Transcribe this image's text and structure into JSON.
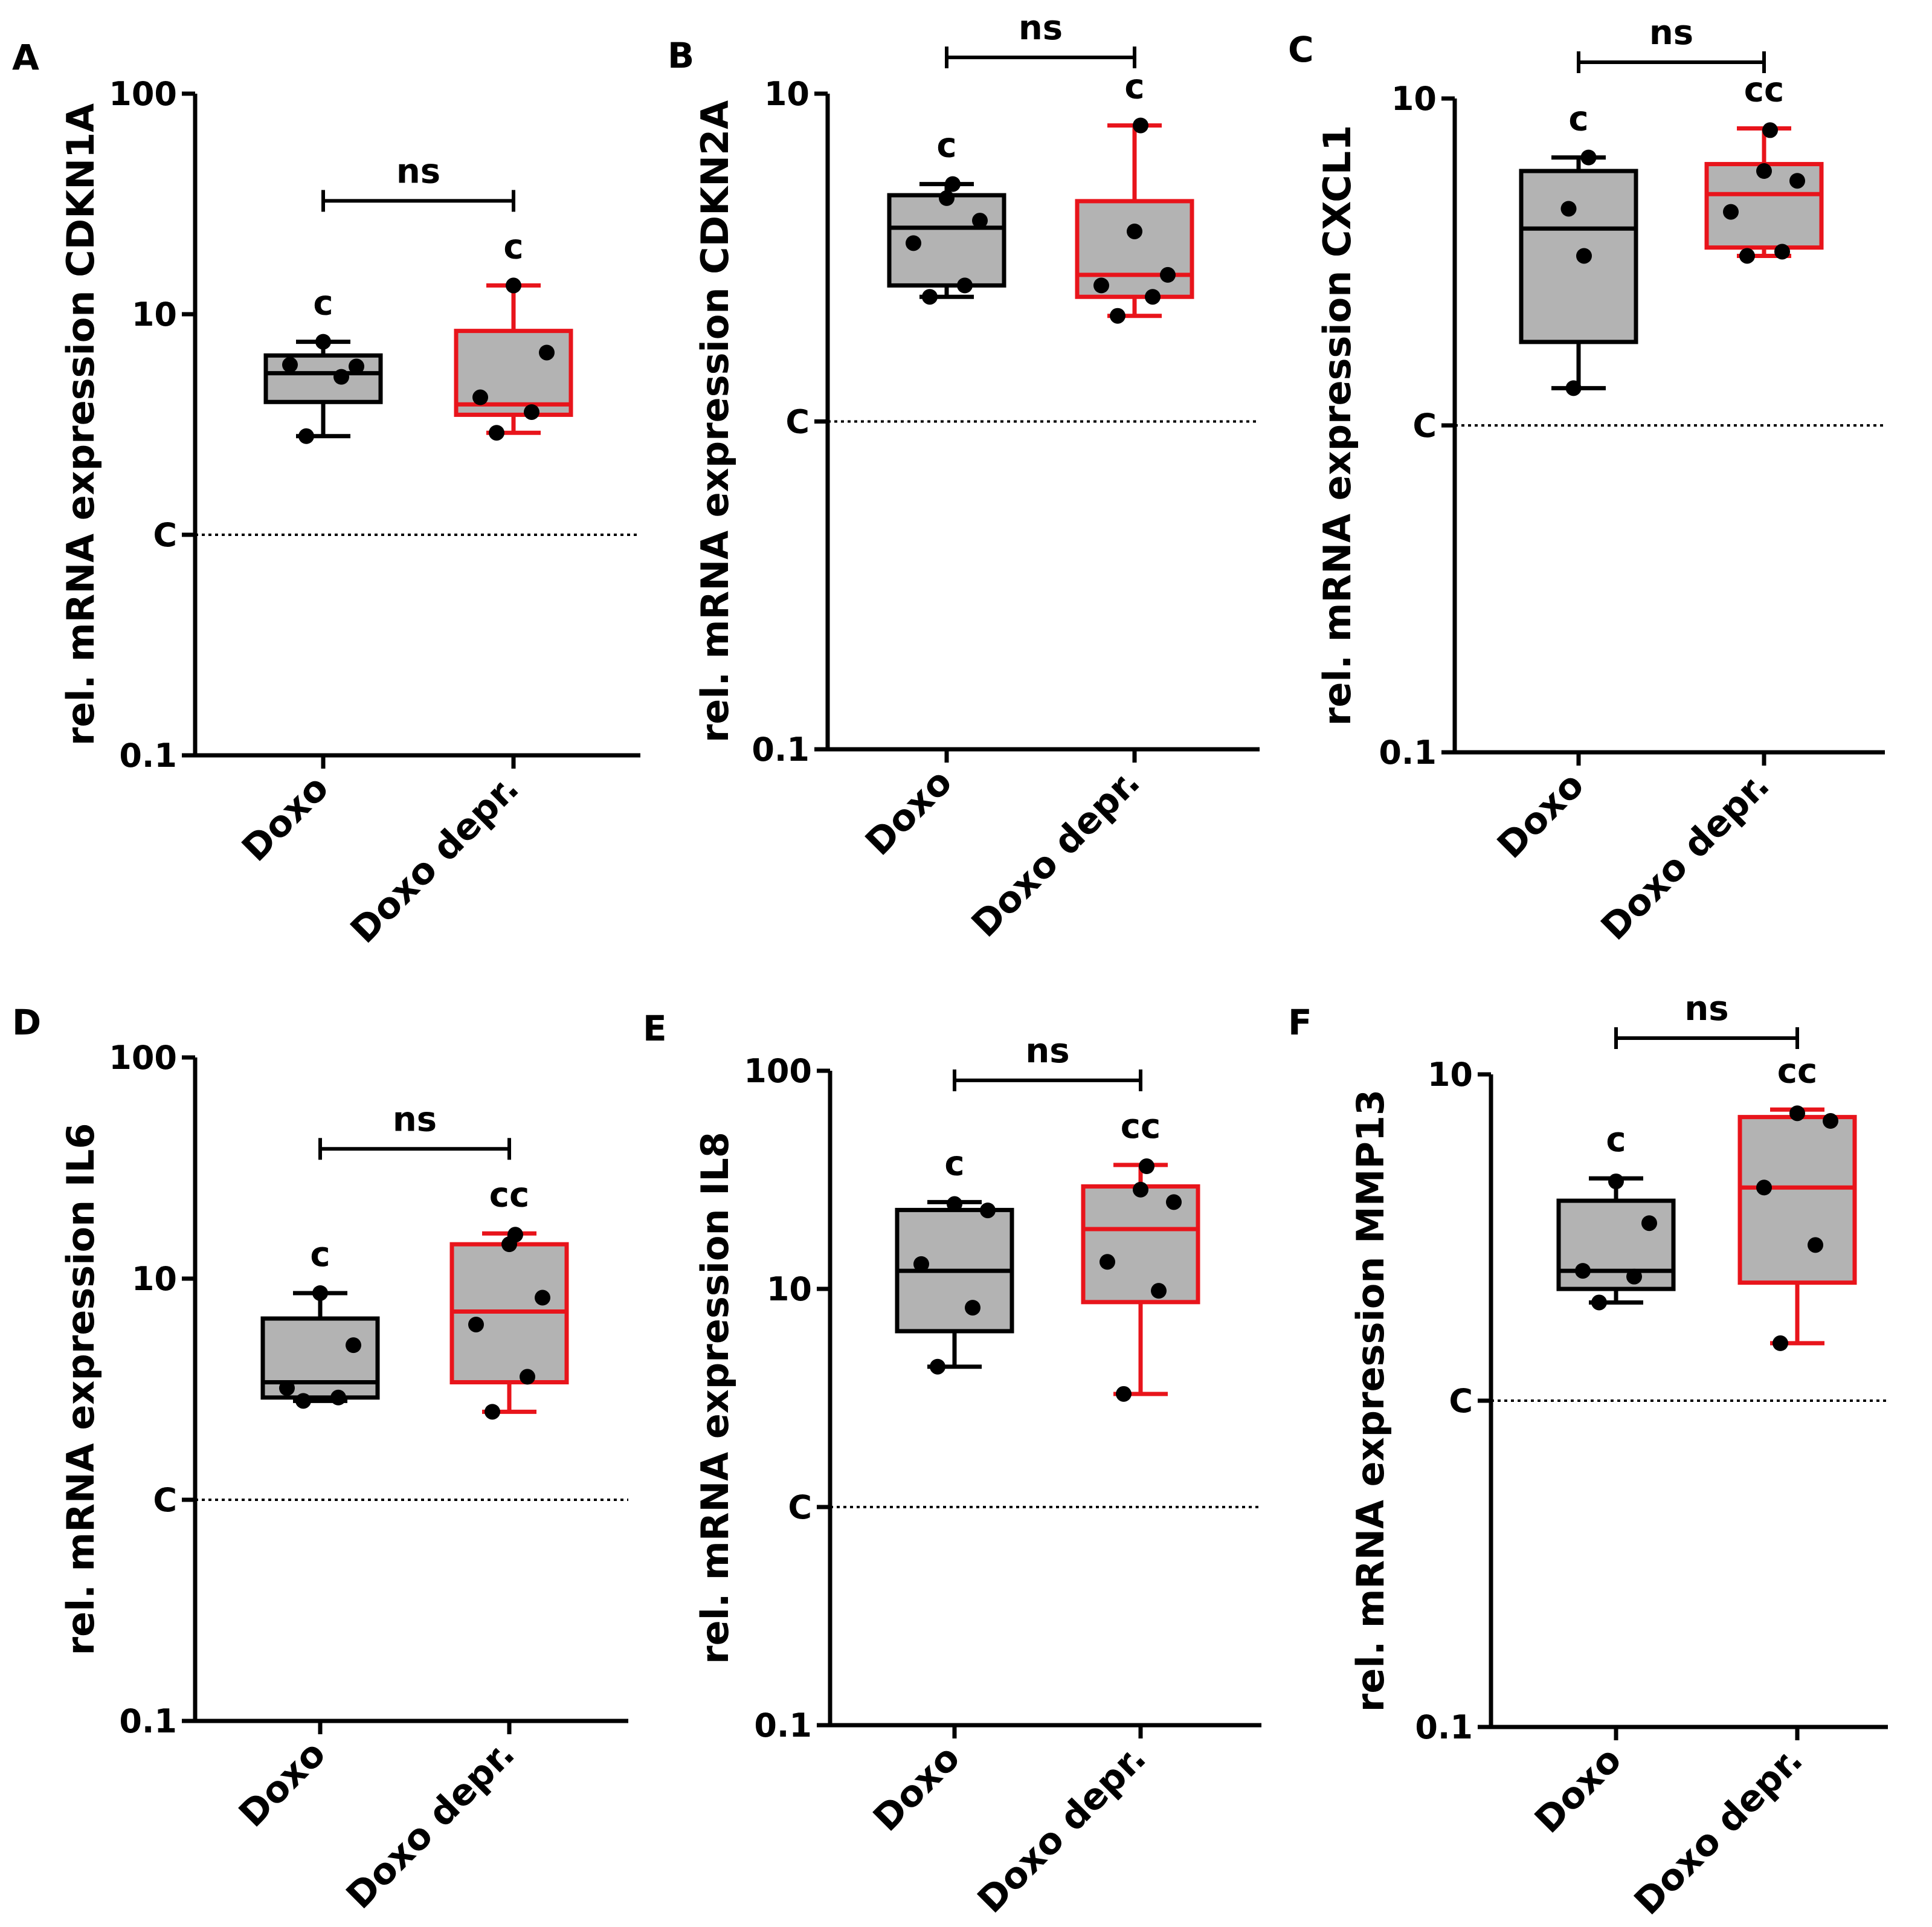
{
  "colors": {
    "doxo": "#000000",
    "doxo_depr": "#e8141b",
    "box_fill": "#b3b3b3"
  },
  "chart_data": [
    {
      "type": "box",
      "panel": "A",
      "ylabel": "rel. mRNA expression CDKN1A",
      "yscale": "log",
      "ylim": [
        0.1,
        100
      ],
      "yticks": [
        {
          "value": 0.1,
          "label": "0.1"
        },
        {
          "value": 1,
          "label": "C"
        },
        {
          "value": 10,
          "label": "10"
        },
        {
          "value": 100,
          "label": "100"
        }
      ],
      "control_line": 1,
      "categories": [
        "Doxo",
        "Doxo depr."
      ],
      "groups": [
        {
          "name": "Doxo",
          "color": "#000000",
          "whisker_low": 2.8,
          "q1": 4.0,
          "median": 5.4,
          "q3": 6.5,
          "whisker_high": 7.5,
          "points": [
            2.8,
            5.2,
            5.9,
            5.8,
            7.5
          ],
          "sig": "c"
        },
        {
          "name": "Doxo depr.",
          "color": "#e8141b",
          "whisker_low": 2.9,
          "q1": 3.5,
          "median": 3.9,
          "q3": 8.4,
          "whisker_high": 13.5,
          "points": [
            2.9,
            3.6,
            4.2,
            6.7,
            13.5
          ],
          "sig": "c"
        }
      ],
      "comparison": "ns"
    },
    {
      "type": "box",
      "panel": "B",
      "ylabel": "rel. mRNA expression CDKN2A",
      "yscale": "log",
      "ylim": [
        0.1,
        10
      ],
      "yticks": [
        {
          "value": 0.1,
          "label": "0.1"
        },
        {
          "value": 1,
          "label": "C"
        },
        {
          "value": 10,
          "label": "10"
        }
      ],
      "control_line": 1,
      "categories": [
        "Doxo",
        "Doxo depr."
      ],
      "groups": [
        {
          "name": "Doxo",
          "color": "#000000",
          "whisker_low": 2.4,
          "q1": 2.6,
          "median": 3.9,
          "q3": 4.9,
          "whisker_high": 5.3,
          "points": [
            2.4,
            2.6,
            3.5,
            4.1,
            4.8,
            5.3
          ],
          "sig": "c"
        },
        {
          "name": "Doxo depr.",
          "color": "#e8141b",
          "whisker_low": 2.1,
          "q1": 2.4,
          "median": 2.8,
          "q3": 4.7,
          "whisker_high": 8.0,
          "points": [
            2.1,
            2.4,
            2.6,
            2.8,
            3.8,
            8.0
          ],
          "sig": "c"
        }
      ],
      "comparison": "ns"
    },
    {
      "type": "box",
      "panel": "C",
      "ylabel": "rel. mRNA expression CXCL1",
      "yscale": "log",
      "ylim": [
        0.1,
        10
      ],
      "yticks": [
        {
          "value": 0.1,
          "label": "0.1"
        },
        {
          "value": 1,
          "label": "C"
        },
        {
          "value": 10,
          "label": "10"
        }
      ],
      "control_line": 1,
      "categories": [
        "Doxo",
        "Doxo depr."
      ],
      "groups": [
        {
          "name": "Doxo",
          "color": "#000000",
          "whisker_low": 1.3,
          "q1": 1.8,
          "median": 4.0,
          "q3": 6.0,
          "whisker_high": 6.6,
          "points": [
            1.3,
            3.3,
            4.6,
            6.6
          ],
          "sig": "c"
        },
        {
          "name": "Doxo depr.",
          "color": "#e8141b",
          "whisker_low": 3.3,
          "q1": 3.5,
          "median": 5.1,
          "q3": 6.3,
          "whisker_high": 8.1,
          "points": [
            3.3,
            3.4,
            4.5,
            5.6,
            6.0,
            8.0
          ],
          "sig": "cc"
        }
      ],
      "comparison": "ns"
    },
    {
      "type": "box",
      "panel": "D",
      "ylabel": "rel. mRNA expression IL6",
      "yscale": "log",
      "ylim": [
        0.1,
        100
      ],
      "yticks": [
        {
          "value": 0.1,
          "label": "0.1"
        },
        {
          "value": 1,
          "label": "C"
        },
        {
          "value": 10,
          "label": "10"
        },
        {
          "value": 100,
          "label": "100"
        }
      ],
      "control_line": 1,
      "categories": [
        "Doxo",
        "Doxo depr."
      ],
      "groups": [
        {
          "name": "Doxo",
          "color": "#000000",
          "whisker_low": 2.8,
          "q1": 2.9,
          "median": 3.4,
          "q3": 6.6,
          "whisker_high": 8.6,
          "points": [
            2.8,
            2.9,
            3.2,
            5.0,
            8.6
          ],
          "sig": "c"
        },
        {
          "name": "Doxo depr.",
          "color": "#e8141b",
          "whisker_low": 2.5,
          "q1": 3.4,
          "median": 7.1,
          "q3": 14.3,
          "whisker_high": 16.0,
          "points": [
            2.5,
            3.6,
            6.2,
            8.2,
            14.3,
            15.8
          ],
          "sig": "cc"
        }
      ],
      "comparison": "ns"
    },
    {
      "type": "box",
      "panel": "E",
      "ylabel": "rel. mRNA expression IL8",
      "yscale": "log",
      "ylim": [
        0.1,
        100
      ],
      "yticks": [
        {
          "value": 0.1,
          "label": "0.1"
        },
        {
          "value": 1,
          "label": "C"
        },
        {
          "value": 10,
          "label": "10"
        },
        {
          "value": 100,
          "label": "100"
        }
      ],
      "control_line": 1,
      "categories": [
        "Doxo",
        "Doxo depr."
      ],
      "groups": [
        {
          "name": "Doxo",
          "color": "#000000",
          "whisker_low": 4.4,
          "q1": 6.4,
          "median": 12.1,
          "q3": 23.0,
          "whisker_high": 25.0,
          "points": [
            4.4,
            8.2,
            13.0,
            22.9,
            24.5
          ],
          "sig": "c"
        },
        {
          "name": "Doxo depr.",
          "color": "#e8141b",
          "whisker_low": 3.3,
          "q1": 8.7,
          "median": 18.8,
          "q3": 29.5,
          "whisker_high": 37.0,
          "points": [
            3.3,
            9.8,
            13.3,
            25.0,
            28.5,
            36.5
          ],
          "sig": "cc"
        }
      ],
      "comparison": "ns"
    },
    {
      "type": "box",
      "panel": "F",
      "ylabel": "rel. mRNA expression MMP13",
      "yscale": "log",
      "ylim": [
        0.1,
        10
      ],
      "yticks": [
        {
          "value": 0.1,
          "label": "0.1"
        },
        {
          "value": 1,
          "label": "C"
        },
        {
          "value": 10,
          "label": "10"
        }
      ],
      "control_line": 1,
      "categories": [
        "Doxo",
        "Doxo depr."
      ],
      "groups": [
        {
          "name": "Doxo",
          "color": "#000000",
          "whisker_low": 2.0,
          "q1": 2.2,
          "median": 2.5,
          "q3": 4.1,
          "whisker_high": 4.8,
          "points": [
            2.0,
            2.4,
            2.5,
            3.5,
            4.7
          ],
          "sig": "c"
        },
        {
          "name": "Doxo depr.",
          "color": "#e8141b",
          "whisker_low": 1.5,
          "q1": 2.3,
          "median": 4.5,
          "q3": 7.4,
          "whisker_high": 7.8,
          "points": [
            1.5,
            3.0,
            4.5,
            7.2,
            7.6
          ],
          "sig": "cc"
        }
      ],
      "comparison": "ns"
    }
  ]
}
